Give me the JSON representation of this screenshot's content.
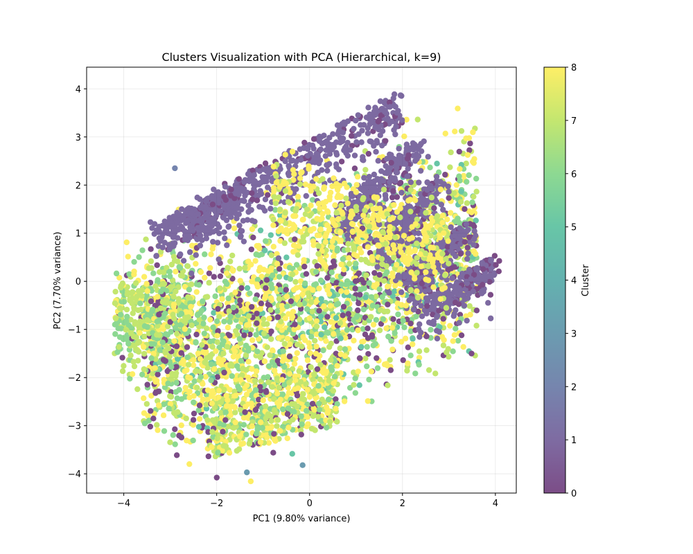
{
  "chart_data": {
    "type": "scatter",
    "title": "Clusters Visualization with PCA (Hierarchical, k=9)",
    "xlabel": "PC1 (9.80% variance)",
    "ylabel": "PC2 (7.70% variance)",
    "xlim": [
      -4.8,
      4.45
    ],
    "ylim": [
      -4.4,
      4.45
    ],
    "x_ticks": [
      -4,
      -2,
      0,
      2,
      4
    ],
    "y_ticks": [
      -4,
      -3,
      -2,
      -1,
      0,
      1,
      2,
      3,
      4
    ],
    "grid": true,
    "colormap": "viridis",
    "point_alpha": 0.7,
    "colorbar": {
      "label": "Cluster",
      "range": [
        0,
        8
      ],
      "ticks": [
        0,
        1,
        2,
        3,
        4,
        5,
        6,
        7,
        8
      ]
    },
    "clusters": [
      {
        "cluster": 0,
        "color": "#440154",
        "note_points": "dense dark points scattered through central mass"
      },
      {
        "cluster": 1,
        "color": "#472c7a",
        "note_points": "upper diagonal bands"
      },
      {
        "cluster": 2,
        "color": "#3b518b",
        "note_points": "outliers"
      },
      {
        "cluster": 3,
        "color": "#2c718e"
      },
      {
        "cluster": 4,
        "color": "#21908d"
      },
      {
        "cluster": 5,
        "color": "#27ad81"
      },
      {
        "cluster": 6,
        "color": "#5cc863"
      },
      {
        "cluster": 7,
        "color": "#aadc32"
      },
      {
        "cluster": 8,
        "color": "#fde725"
      }
    ],
    "outliers": [
      {
        "x": -2.9,
        "y": 2.35,
        "cluster": 2
      },
      {
        "x": -1.35,
        "y": -3.97,
        "cluster": 3
      },
      {
        "x": -0.15,
        "y": -3.82,
        "cluster": 3
      },
      {
        "x": 3.9,
        "y": -0.77,
        "cluster": 1
      }
    ]
  }
}
